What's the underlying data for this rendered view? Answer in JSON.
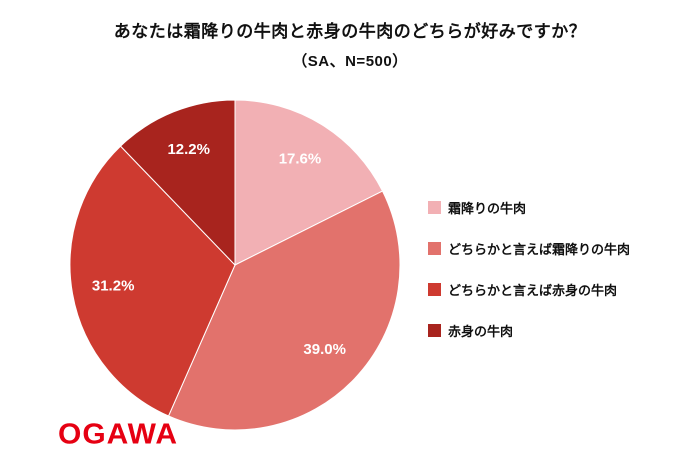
{
  "title": "あなたは霜降りの牛肉と赤身の牛肉のどちらが好みですか？",
  "subtitle": "（SA、N=500）",
  "logo_text": "OGAWA",
  "chart_data": {
    "type": "pie",
    "title": "あなたは霜降りの牛肉と赤身の牛肉のどちらが好みですか？",
    "subtitle": "（SA、N=500）",
    "sample_size": 500,
    "question_type": "SA",
    "start_angle_deg": 0,
    "direction": "clockwise",
    "legend_position": "right",
    "label_color": "#ffffff",
    "slices": [
      {
        "label": "霜降りの牛肉",
        "value": 17.6,
        "display": "17.6%",
        "color": "#f2b0b4"
      },
      {
        "label": "どちらかと言えば霜降りの牛肉",
        "value": 39.0,
        "display": "39.0%",
        "color": "#e2726c"
      },
      {
        "label": "どちらかと言えば赤身の牛肉",
        "value": 31.2,
        "display": "31.2%",
        "color": "#ce3a30"
      },
      {
        "label": "赤身の牛肉",
        "value": 12.2,
        "display": "12.2%",
        "color": "#a8241e"
      }
    ]
  }
}
